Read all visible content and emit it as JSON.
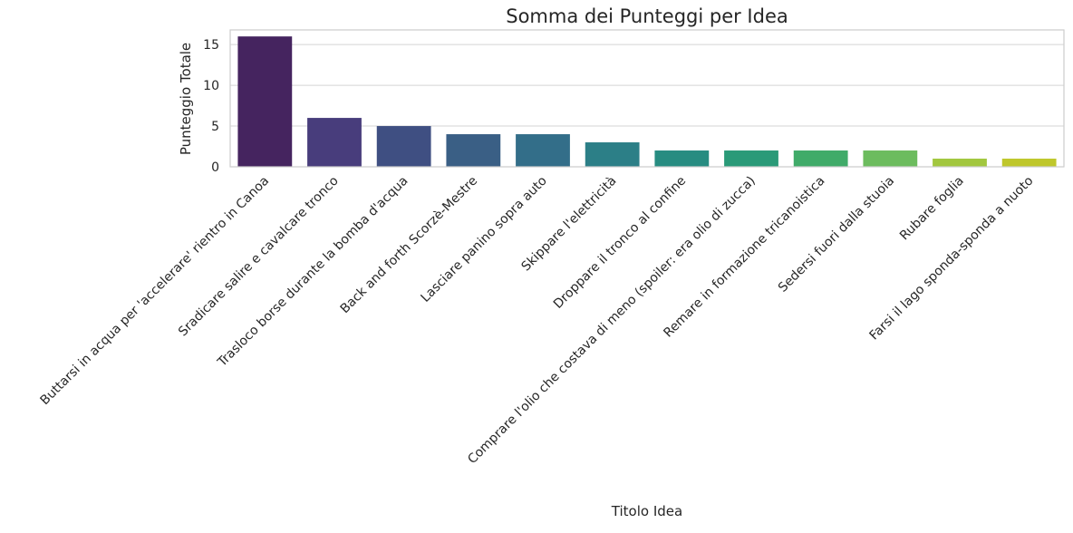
{
  "chart_data": {
    "type": "bar",
    "title": "Somma dei Punteggi per Idea",
    "xlabel": "Titolo Idea",
    "ylabel": "Punteggio Totale",
    "ylim": [
      0,
      16.8
    ],
    "yticks": [
      0,
      5,
      10,
      15
    ],
    "grid": true,
    "categories": [
      "Buttarsi in acqua per 'accelerare' rientro in Canoa",
      "Sradicare salire e cavalcare tronco",
      "Trasloco borse durante la bomba d'acqua",
      "Back and forth Scorzè-Mestre",
      "Lasciare panino sopra auto",
      "Skippare l'elettricità",
      "Droppare il tronco al confine",
      "Comprare l'olio che costava di meno (spoiler: era olio di zucca)",
      "Remare in formazione tricanoistica",
      "Sedersi fuori dalla stuoia",
      "Rubare foglia",
      "Farsi il lago sponda-sponda a nuoto"
    ],
    "values": [
      16,
      6,
      5,
      4,
      4,
      3,
      2,
      2,
      2,
      2,
      1,
      1
    ],
    "colors": [
      "#45245f",
      "#483d7c",
      "#3f4f82",
      "#3a5f85",
      "#336e89",
      "#2c7f87",
      "#278c81",
      "#2a9a78",
      "#40ab69",
      "#6cbc5e",
      "#a2c73f",
      "#bfc72c"
    ]
  }
}
